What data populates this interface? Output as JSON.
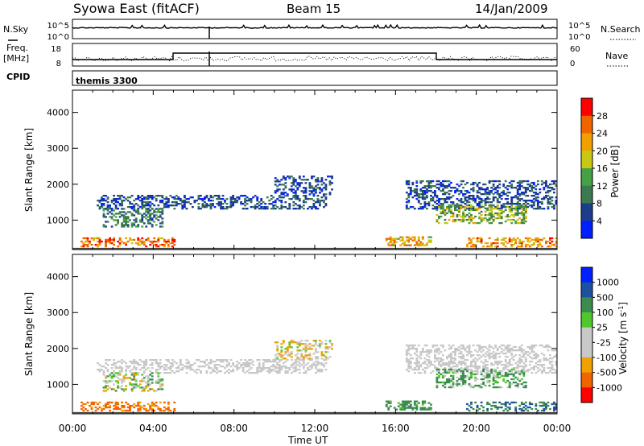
{
  "header": {
    "title": "Syowa East (fitACF)",
    "beam": "Beam 15",
    "date": "14/Jan/2009"
  },
  "summary_panels": {
    "nsky": {
      "label": "N.Sky",
      "ticks": [
        "10^5",
        "10^0"
      ]
    },
    "nsearch": {
      "label": "N.Search",
      "ticks": [
        "10^5",
        "10^0"
      ]
    },
    "freq": {
      "label_line1": "Freq.",
      "label_line2": "[MHz]",
      "ticks": [
        "18",
        "8"
      ]
    },
    "nave": {
      "label": "Nave",
      "ticks": [
        "60",
        "0"
      ]
    },
    "cpid": {
      "label": "CPID",
      "value": "themis 3300"
    }
  },
  "colors": {
    "power": [
      "#0020ff",
      "#1e3c8c",
      "#3c7850",
      "#46a046",
      "#c8c814",
      "#f0a000",
      "#f06400",
      "#ff0000"
    ],
    "velocity": [
      "#ff0000",
      "#f06400",
      "#f0a000",
      "#c8c8c8",
      "#c8c8c8",
      "#50c82d",
      "#3c8c50",
      "#1e50a0",
      "#0020ff"
    ]
  },
  "chart_data": [
    {
      "type": "heatmap",
      "name": "power",
      "ylabel": "Slant Range [km]",
      "xlabel": "Time UT",
      "xticks": [
        "00:00",
        "04:00",
        "08:00",
        "12:00",
        "16:00",
        "20:00",
        "00:00"
      ],
      "yticks": [
        "1000",
        "2000",
        "3000",
        "4000"
      ],
      "ylim": [
        180,
        4620
      ],
      "colorbar": {
        "label": "Power [dB]",
        "ticks": [
          "4",
          "8",
          "12",
          "16",
          "20",
          "24",
          "28"
        ],
        "range": [
          0,
          30
        ]
      },
      "regions": [
        {
          "t0": 0.4,
          "t1": 5.0,
          "r0": 250,
          "r1": 500,
          "v0": 18,
          "v1": 30
        },
        {
          "t0": 1.2,
          "t1": 12.5,
          "r0": 1300,
          "r1": 1700,
          "v0": 2,
          "v1": 10
        },
        {
          "t0": 1.5,
          "t1": 4.5,
          "r0": 800,
          "r1": 1300,
          "v0": 4,
          "v1": 14
        },
        {
          "t0": 10.0,
          "t1": 12.8,
          "r0": 1700,
          "r1": 2200,
          "v0": 2,
          "v1": 9
        },
        {
          "t0": 15.5,
          "t1": 17.8,
          "r0": 280,
          "r1": 520,
          "v0": 14,
          "v1": 26
        },
        {
          "t0": 16.5,
          "t1": 24.0,
          "r0": 1300,
          "r1": 2100,
          "v0": 2,
          "v1": 10
        },
        {
          "t0": 18.0,
          "t1": 22.5,
          "r0": 900,
          "r1": 1400,
          "v0": 8,
          "v1": 20
        },
        {
          "t0": 19.5,
          "t1": 24.0,
          "r0": 250,
          "r1": 500,
          "v0": 16,
          "v1": 28
        }
      ]
    },
    {
      "type": "heatmap",
      "name": "velocity",
      "ylabel": "Slant Range [km]",
      "xlabel": "Time UT",
      "xticks": [
        "00:00",
        "04:00",
        "08:00",
        "12:00",
        "16:00",
        "20:00",
        "00:00"
      ],
      "yticks": [
        "1000",
        "2000",
        "3000",
        "4000"
      ],
      "ylim": [
        180,
        4620
      ],
      "colorbar": {
        "label": "Velocity [m s^-1]",
        "ticks": [
          "-1000",
          "-500",
          "-100",
          "-25",
          "25",
          "100",
          "500",
          "1000"
        ]
      },
      "regions": [
        {
          "t0": 0.4,
          "t1": 5.0,
          "r0": 250,
          "r1": 500,
          "v0": -1000,
          "v1": -300
        },
        {
          "t0": 1.2,
          "t1": 12.5,
          "r0": 1300,
          "r1": 1700,
          "v0": -25,
          "v1": 25
        },
        {
          "t0": 1.5,
          "t1": 4.5,
          "r0": 800,
          "r1": 1300,
          "v0": -200,
          "v1": 200
        },
        {
          "t0": 10.0,
          "t1": 12.8,
          "r0": 1700,
          "r1": 2200,
          "v0": -200,
          "v1": 50
        },
        {
          "t0": 15.5,
          "t1": 17.8,
          "r0": 280,
          "r1": 520,
          "v0": 50,
          "v1": 300
        },
        {
          "t0": 16.5,
          "t1": 24.0,
          "r0": 1300,
          "r1": 2100,
          "v0": -25,
          "v1": 25
        },
        {
          "t0": 18.0,
          "t1": 22.5,
          "r0": 900,
          "r1": 1400,
          "v0": -50,
          "v1": 300
        },
        {
          "t0": 19.5,
          "t1": 24.0,
          "r0": 250,
          "r1": 500,
          "v0": 100,
          "v1": 800
        }
      ]
    }
  ]
}
